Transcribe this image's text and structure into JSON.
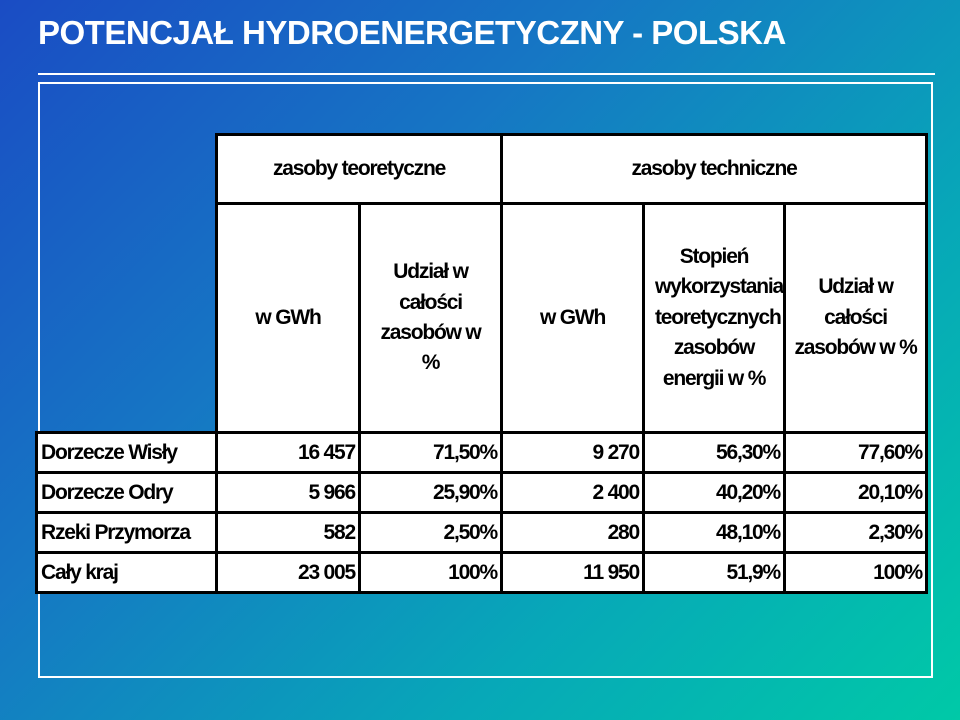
{
  "header": {
    "title": "POTENCJAŁ HYDROENERGETYCZNY - POLSKA"
  },
  "table": {
    "groups": [
      "zasoby teoretyczne",
      "zasoby techniczne"
    ],
    "columns": [
      "w GWh",
      "Udział w całości zasobów w %",
      "w GWh",
      "Stopień wykorzystania teoretycznych zasobów energii w %",
      "Udział w całości zasobów w %"
    ],
    "rows": [
      [
        "Dorzecze Wisły",
        "16 457",
        "71,50%",
        "9 270",
        "56,30%",
        "77,60%"
      ],
      [
        "Dorzecze Odry",
        "5 966",
        "25,90%",
        "2 400",
        "40,20%",
        "20,10%"
      ],
      [
        "Rzeki Przymorza",
        "582",
        "2,50%",
        "280",
        "48,10%",
        "2,30%"
      ],
      [
        "Cały kraj",
        "23 005",
        "100%",
        "11 950",
        "51,9%",
        "100%"
      ]
    ]
  }
}
